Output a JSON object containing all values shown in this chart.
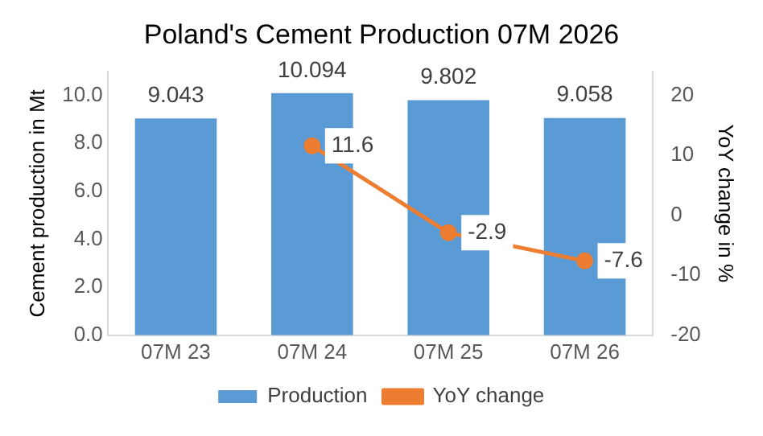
{
  "chart_data": {
    "type": "bar",
    "title": "Poland's Cement Production 07M 2026",
    "categories": [
      "07M 23",
      "07M 24",
      "07M 25",
      "07M 26"
    ],
    "ylabel": "Cement production in Mt",
    "y2label": "YoY change in %",
    "ylim": [
      0,
      11
    ],
    "yticks": [
      {
        "value": 0,
        "label": "0.0"
      },
      {
        "value": 2,
        "label": "2.0"
      },
      {
        "value": 4,
        "label": "4.0"
      },
      {
        "value": 6,
        "label": "6.0"
      },
      {
        "value": 8,
        "label": "8.0"
      },
      {
        "value": 10,
        "label": "10.0"
      }
    ],
    "y2lim": [
      -20,
      24
    ],
    "y2ticks": [
      -20,
      -10,
      0,
      10,
      20
    ],
    "series": [
      {
        "name": "Production",
        "color": "#5b9bd5",
        "values": [
          9.043,
          10.094,
          9.802,
          9.058
        ]
      },
      {
        "name": "YoY change",
        "type": "line",
        "axis": "y2",
        "color": "#ed7d31",
        "values": [
          null,
          11.6,
          -2.9,
          -7.6
        ]
      }
    ],
    "data_labels": true,
    "legend": "bottom",
    "marker": "circle",
    "grid": false
  }
}
